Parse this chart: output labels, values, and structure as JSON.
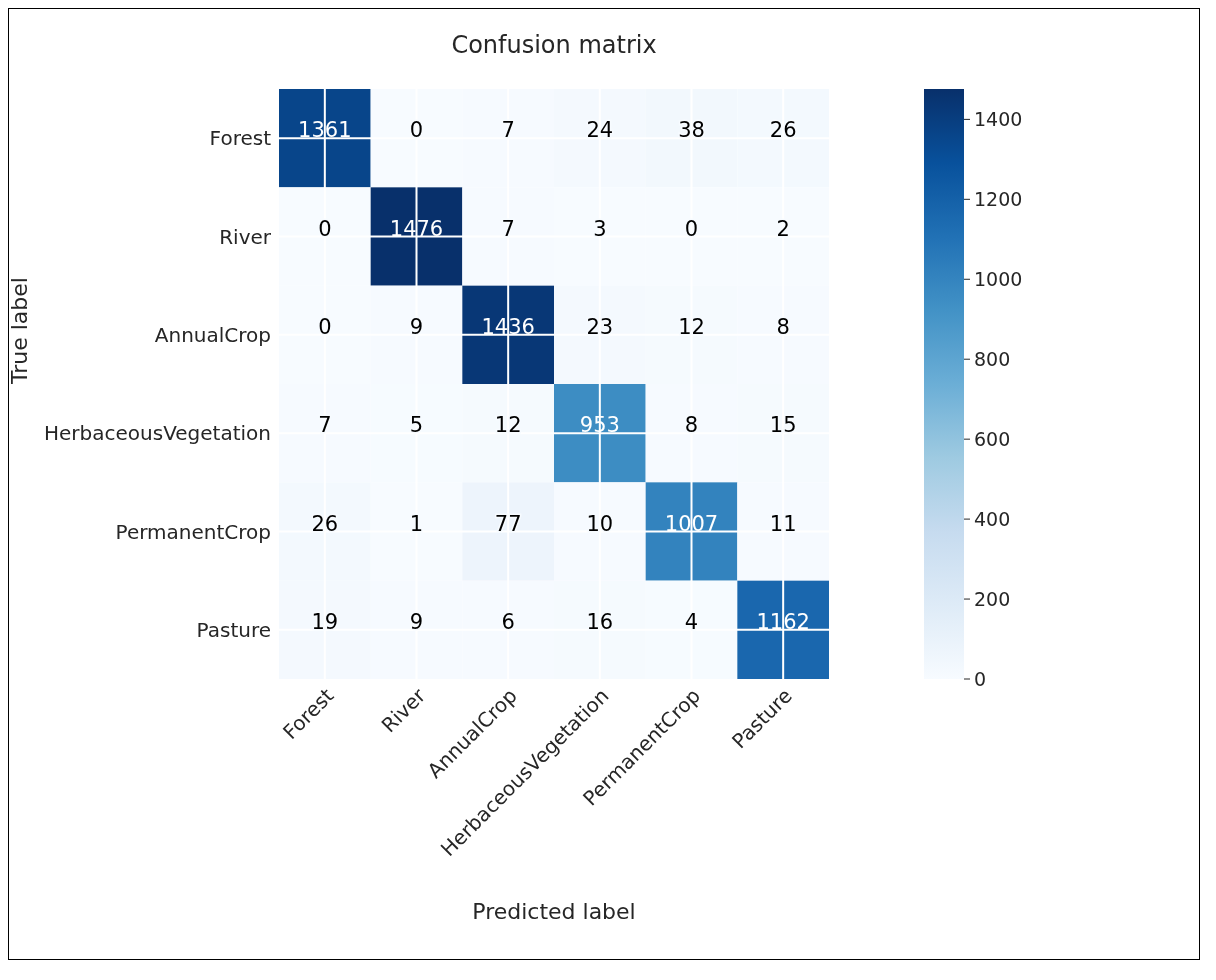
{
  "chart_data": {
    "type": "heatmap",
    "title": "Confusion matrix",
    "xlabel": "Predicted label",
    "ylabel": "True label",
    "categories": [
      "Forest",
      "River",
      "AnnualCrop",
      "HerbaceousVegetation",
      "PermanentCrop",
      "Pasture"
    ],
    "y_categories": [
      "Forest",
      "River",
      "AnnualCrop",
      "HerbaceousVegetation",
      "PermanentCrop",
      "Pasture"
    ],
    "cells": [
      [
        1361,
        0,
        7,
        24,
        38,
        26
      ],
      [
        0,
        1476,
        7,
        3,
        0,
        2
      ],
      [
        0,
        9,
        1436,
        23,
        12,
        8
      ],
      [
        7,
        5,
        12,
        953,
        8,
        15
      ],
      [
        26,
        1,
        77,
        10,
        1007,
        11
      ],
      [
        19,
        9,
        6,
        16,
        4,
        1162
      ]
    ],
    "clim": [
      0,
      1476
    ],
    "cticks": [
      0,
      200,
      400,
      600,
      800,
      1000,
      1200,
      1400
    ],
    "grid": true,
    "data_labels": true
  }
}
